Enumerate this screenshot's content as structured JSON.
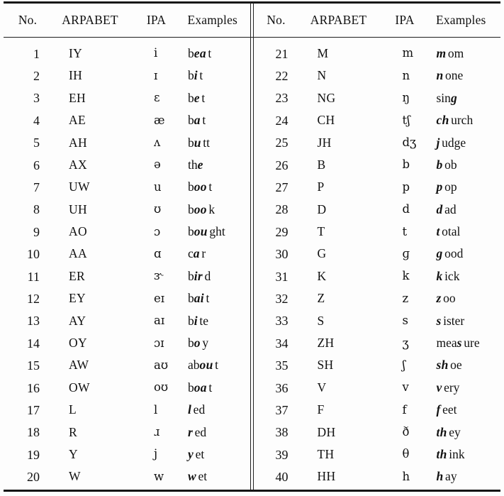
{
  "table": {
    "headers": [
      "No.",
      "ARPABET",
      "IPA",
      "Examples"
    ],
    "left_rows": [
      {
        "no": "1",
        "arpabet": "IY",
        "ipa": "i",
        "example": {
          "pre": "b",
          "bold": "ea",
          "post": "t"
        }
      },
      {
        "no": "2",
        "arpabet": "IH",
        "ipa": "ɪ",
        "example": {
          "pre": "b",
          "bold": "i",
          "post": "t"
        }
      },
      {
        "no": "3",
        "arpabet": "EH",
        "ipa": "ɛ",
        "example": {
          "pre": "b",
          "bold": "e",
          "post": "t"
        }
      },
      {
        "no": "4",
        "arpabet": "AE",
        "ipa": "æ",
        "example": {
          "pre": "b",
          "bold": "a",
          "post": "t"
        }
      },
      {
        "no": "5",
        "arpabet": "AH",
        "ipa": "ʌ",
        "example": {
          "pre": "b",
          "bold": "u",
          "post": "tt"
        }
      },
      {
        "no": "6",
        "arpabet": "AX",
        "ipa": "ə",
        "example": {
          "pre": "th",
          "bold": "e",
          "post": ""
        }
      },
      {
        "no": "7",
        "arpabet": "UW",
        "ipa": "u",
        "example": {
          "pre": "b",
          "bold": "oo",
          "post": "t"
        }
      },
      {
        "no": "8",
        "arpabet": "UH",
        "ipa": "ʊ",
        "example": {
          "pre": "b",
          "bold": "oo",
          "post": "k"
        }
      },
      {
        "no": "9",
        "arpabet": "AO",
        "ipa": "ɔ",
        "example": {
          "pre": "b",
          "bold": "ou",
          "post": "ght"
        }
      },
      {
        "no": "10",
        "arpabet": "AA",
        "ipa": "ɑ",
        "example": {
          "pre": "c",
          "bold": "a",
          "post": "r"
        }
      },
      {
        "no": "11",
        "arpabet": "ER",
        "ipa": "ɝ",
        "example": {
          "pre": "b",
          "bold": "ir",
          "post": "d"
        }
      },
      {
        "no": "12",
        "arpabet": "EY",
        "ipa": "eɪ",
        "example": {
          "pre": "b",
          "bold": "ai",
          "post": "t"
        }
      },
      {
        "no": "13",
        "arpabet": "AY",
        "ipa": "aɪ",
        "example": {
          "pre": "b",
          "bold": "i",
          "post": "te"
        }
      },
      {
        "no": "14",
        "arpabet": "OY",
        "ipa": "ɔɪ",
        "example": {
          "pre": "b",
          "bold": "o",
          "post": "y"
        }
      },
      {
        "no": "15",
        "arpabet": "AW",
        "ipa": "aʊ",
        "example": {
          "pre": "ab",
          "bold": "ou",
          "post": "t"
        }
      },
      {
        "no": "16",
        "arpabet": "OW",
        "ipa": "oʊ",
        "example": {
          "pre": "b",
          "bold": "oa",
          "post": "t"
        }
      },
      {
        "no": "17",
        "arpabet": "L",
        "ipa": "l",
        "example": {
          "pre": "",
          "bold": "l",
          "post": "ed"
        }
      },
      {
        "no": "18",
        "arpabet": "R",
        "ipa": "ɹ",
        "example": {
          "pre": "",
          "bold": "r",
          "post": "ed"
        }
      },
      {
        "no": "19",
        "arpabet": "Y",
        "ipa": "j",
        "example": {
          "pre": "",
          "bold": "y",
          "post": "et"
        }
      },
      {
        "no": "20",
        "arpabet": "W",
        "ipa": "w",
        "example": {
          "pre": "",
          "bold": "w",
          "post": "et"
        }
      }
    ],
    "right_rows": [
      {
        "no": "21",
        "arpabet": "M",
        "ipa": "m",
        "example": {
          "pre": "",
          "bold": "m",
          "post": "om"
        }
      },
      {
        "no": "22",
        "arpabet": "N",
        "ipa": "n",
        "example": {
          "pre": "",
          "bold": "n",
          "post": "one"
        }
      },
      {
        "no": "23",
        "arpabet": "NG",
        "ipa": "ŋ",
        "example": {
          "pre": "sin",
          "bold": "g",
          "post": ""
        }
      },
      {
        "no": "24",
        "arpabet": "CH",
        "ipa": "tʃ",
        "example": {
          "pre": "",
          "bold": "ch",
          "post": "urch"
        }
      },
      {
        "no": "25",
        "arpabet": "JH",
        "ipa": "dʒ",
        "example": {
          "pre": "",
          "bold": "j",
          "post": "udge"
        }
      },
      {
        "no": "26",
        "arpabet": "B",
        "ipa": "b",
        "example": {
          "pre": "",
          "bold": "b",
          "post": "ob"
        }
      },
      {
        "no": "27",
        "arpabet": "P",
        "ipa": "p",
        "example": {
          "pre": "",
          "bold": "p",
          "post": "op"
        }
      },
      {
        "no": "28",
        "arpabet": "D",
        "ipa": "d",
        "example": {
          "pre": "",
          "bold": "d",
          "post": "ad"
        }
      },
      {
        "no": "29",
        "arpabet": "T",
        "ipa": "t",
        "example": {
          "pre": "",
          "bold": "t",
          "post": "otal"
        }
      },
      {
        "no": "30",
        "arpabet": "G",
        "ipa": "ɡ",
        "example": {
          "pre": "",
          "bold": "g",
          "post": "ood"
        }
      },
      {
        "no": "31",
        "arpabet": "K",
        "ipa": "k",
        "example": {
          "pre": "",
          "bold": "k",
          "post": "ick"
        }
      },
      {
        "no": "32",
        "arpabet": "Z",
        "ipa": "z",
        "example": {
          "pre": "",
          "bold": "z",
          "post": "oo"
        }
      },
      {
        "no": "33",
        "arpabet": "S",
        "ipa": "s",
        "example": {
          "pre": "",
          "bold": "s",
          "post": "ister"
        }
      },
      {
        "no": "34",
        "arpabet": "ZH",
        "ipa": "ʒ",
        "example": {
          "pre": "mea",
          "bold": "s",
          "post": "ure"
        }
      },
      {
        "no": "35",
        "arpabet": "SH",
        "ipa": "ʃ",
        "example": {
          "pre": "",
          "bold": "sh",
          "post": "oe"
        }
      },
      {
        "no": "36",
        "arpabet": "V",
        "ipa": "v",
        "example": {
          "pre": "",
          "bold": "v",
          "post": "ery"
        }
      },
      {
        "no": "37",
        "arpabet": "F",
        "ipa": "f",
        "example": {
          "pre": "",
          "bold": "f",
          "post": "eet"
        }
      },
      {
        "no": "38",
        "arpabet": "DH",
        "ipa": "ð",
        "example": {
          "pre": "",
          "bold": "th",
          "post": "ey"
        }
      },
      {
        "no": "39",
        "arpabet": "TH",
        "ipa": "θ",
        "example": {
          "pre": "",
          "bold": "th",
          "post": "ink"
        }
      },
      {
        "no": "40",
        "arpabet": "HH",
        "ipa": "h",
        "example": {
          "pre": "",
          "bold": "h",
          "post": "ay"
        }
      }
    ]
  },
  "colors": {
    "text": "#111111",
    "rule": "#151515",
    "background": "#fdfdfd"
  }
}
